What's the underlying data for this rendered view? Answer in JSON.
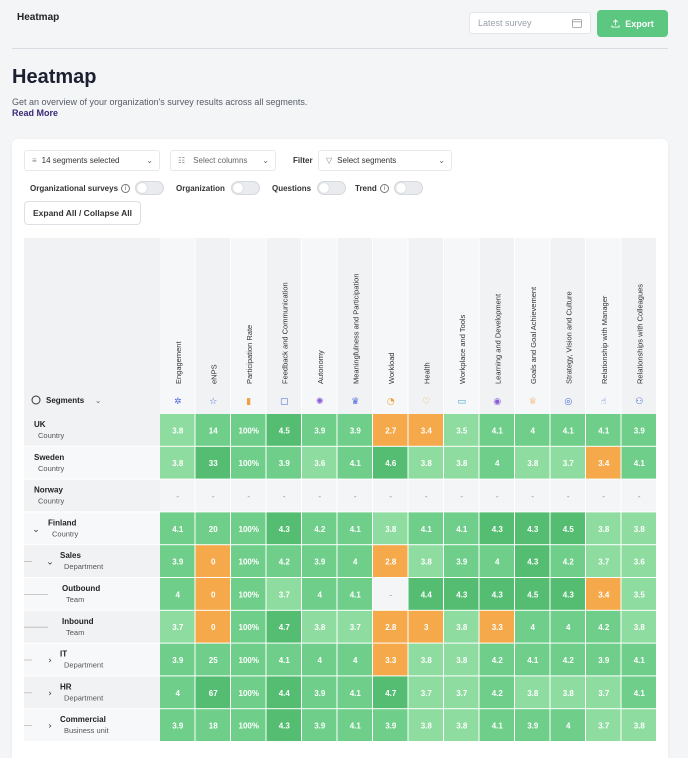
{
  "header": {
    "breadcrumb": "Heatmap",
    "date_placeholder": "Latest survey",
    "export_label": "Export"
  },
  "page": {
    "title": "Heatmap",
    "subtitle": "Get an overview of your organization's survey results across all segments.",
    "read_more": "Read More"
  },
  "toolbar": {
    "segments_select": "14 segments selected",
    "columns_select": "Select columns",
    "filter_label": "Filter",
    "filter_select": "Select segments",
    "toggles": [
      {
        "label": "Organizational surveys",
        "info": true
      },
      {
        "label": "Organization",
        "info": false
      },
      {
        "label": "Questions",
        "info": false
      },
      {
        "label": "Trend",
        "info": true
      }
    ],
    "expand_label": "Expand All / Collapse All"
  },
  "table": {
    "segments_header": "Segments",
    "columns": [
      {
        "label": "Engagement",
        "icon": "gear-icon"
      },
      {
        "label": "eNPS",
        "icon": "star-icon"
      },
      {
        "label": "Participation Rate",
        "icon": "bar-chart-icon"
      },
      {
        "label": "Feedback and Communication",
        "icon": "chat-icon"
      },
      {
        "label": "Autonomy",
        "icon": "sun-icon"
      },
      {
        "label": "Meaningfulness and Participation",
        "icon": "crown-icon"
      },
      {
        "label": "Workload",
        "icon": "gauge-icon"
      },
      {
        "label": "Health",
        "icon": "heart-icon"
      },
      {
        "label": "Workplace and Tools",
        "icon": "monitor-icon"
      },
      {
        "label": "Learning and Development",
        "icon": "check-circle-icon"
      },
      {
        "label": "Goals and Goal Achievement",
        "icon": "trophy-icon"
      },
      {
        "label": "Strategy, Vision and Culture",
        "icon": "target-icon"
      },
      {
        "label": "Relationship with Manager",
        "icon": "thumbs-up-icon"
      },
      {
        "label": "Relationships with Colleagues",
        "icon": "users-icon"
      }
    ],
    "rows": [
      {
        "name": "UK",
        "type": "Country",
        "level": 0,
        "expander": "none",
        "values": [
          "3.8",
          "14",
          "100%",
          "4.5",
          "3.9",
          "3.9",
          "2.7",
          "3.4",
          "3.5",
          "4.1",
          "4",
          "4.1",
          "4.1",
          "3.9"
        ]
      },
      {
        "name": "Sweden",
        "type": "Country",
        "level": 0,
        "expander": "none",
        "values": [
          "3.8",
          "33",
          "100%",
          "3.9",
          "3.6",
          "4.1",
          "4.6",
          "3.8",
          "3.8",
          "4",
          "3.8",
          "3.7",
          "3.4",
          "4.1"
        ]
      },
      {
        "name": "Norway",
        "type": "Country",
        "level": 0,
        "expander": "none",
        "values": [
          "-",
          "-",
          "-",
          "-",
          "-",
          "-",
          "-",
          "-",
          "-",
          "-",
          "-",
          "-",
          "-",
          "-"
        ]
      },
      {
        "name": "Finland",
        "type": "Country",
        "level": 0,
        "expander": "open",
        "values": [
          "4.1",
          "20",
          "100%",
          "4.3",
          "4.2",
          "4.1",
          "3.8",
          "4.1",
          "4.1",
          "4.3",
          "4.3",
          "4.5",
          "3.8",
          "3.8"
        ]
      },
      {
        "name": "Sales",
        "type": "Department",
        "level": 1,
        "expander": "open",
        "values": [
          "3.9",
          "0",
          "100%",
          "4.2",
          "3.9",
          "4",
          "2.8",
          "3.8",
          "3.9",
          "4",
          "4.3",
          "4.2",
          "3.7",
          "3.6"
        ]
      },
      {
        "name": "Outbound",
        "type": "Team",
        "level": 2,
        "expander": "none",
        "values": [
          "4",
          "0",
          "100%",
          "3.7",
          "4",
          "4.1",
          "-",
          "4.4",
          "4.3",
          "4.3",
          "4.5",
          "4.3",
          "3.4",
          "3.5"
        ]
      },
      {
        "name": "Inbound",
        "type": "Team",
        "level": 2,
        "expander": "none",
        "values": [
          "3.7",
          "0",
          "100%",
          "4.7",
          "3.8",
          "3.7",
          "2.8",
          "3",
          "3.8",
          "3.3",
          "4",
          "4",
          "4.2",
          "3.8"
        ]
      },
      {
        "name": "IT",
        "type": "Department",
        "level": 1,
        "expander": "closed",
        "values": [
          "3.9",
          "25",
          "100%",
          "4.1",
          "4",
          "4",
          "3.3",
          "3.8",
          "3.8",
          "4.2",
          "4.1",
          "4.2",
          "3.9",
          "4.1"
        ]
      },
      {
        "name": "HR",
        "type": "Department",
        "level": 1,
        "expander": "closed",
        "values": [
          "4",
          "67",
          "100%",
          "4.4",
          "3.9",
          "4.1",
          "4.7",
          "3.7",
          "3.7",
          "4.2",
          "3.8",
          "3.8",
          "3.7",
          "4.1"
        ]
      },
      {
        "name": "Commercial",
        "type": "Business unit",
        "level": 1,
        "expander": "closed",
        "values": [
          "3.9",
          "18",
          "100%",
          "4.3",
          "3.9",
          "4.1",
          "3.9",
          "3.8",
          "3.8",
          "4.1",
          "3.9",
          "4",
          "3.7",
          "3.8"
        ]
      }
    ],
    "colors": {
      "high": "#6fcf8a",
      "mid": "#8edc9f",
      "low": "#f5a94a",
      "top": "#55bd72",
      "empty": "#f4f5f7"
    }
  }
}
